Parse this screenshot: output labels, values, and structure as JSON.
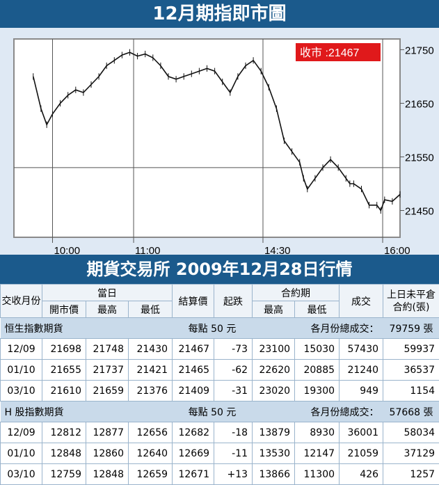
{
  "title": "12月期指即市圖",
  "chart_data": {
    "type": "line",
    "close_label": "收市 :21467",
    "reference_line": 21530,
    "ylim": [
      21400,
      21770
    ],
    "yticks": [
      21750,
      21650,
      21550,
      21450
    ],
    "xticks": [
      {
        "pos": 0.1,
        "label": "10:00"
      },
      {
        "pos": 0.31,
        "label": "11:00"
      },
      {
        "pos": 0.645,
        "label": "14:30"
      },
      {
        "pos": 0.955,
        "label": "16:00"
      }
    ],
    "series": [
      {
        "x": [
          0.05,
          0.07,
          0.085,
          0.1,
          0.12,
          0.14,
          0.16,
          0.18,
          0.2,
          0.22,
          0.24,
          0.26,
          0.28,
          0.3,
          0.32,
          0.34,
          0.36,
          0.38,
          0.4,
          0.42,
          0.44,
          0.46,
          0.48,
          0.5,
          0.52,
          0.54,
          0.56,
          0.58,
          0.6,
          0.62,
          0.64,
          0.66,
          0.68,
          0.7,
          0.72,
          0.74,
          0.75,
          0.76,
          0.78,
          0.8,
          0.82,
          0.84,
          0.86,
          0.87,
          0.88,
          0.9,
          0.92,
          0.94,
          0.95,
          0.96,
          0.98,
          1.0
        ],
        "values": [
          21700,
          21640,
          21610,
          21630,
          21650,
          21665,
          21675,
          21670,
          21685,
          21700,
          21720,
          21730,
          21740,
          21745,
          21738,
          21742,
          21735,
          21720,
          21700,
          21695,
          21700,
          21705,
          21710,
          21715,
          21710,
          21690,
          21670,
          21700,
          21720,
          21730,
          21710,
          21680,
          21640,
          21580,
          21560,
          21540,
          21510,
          21490,
          21510,
          21530,
          21545,
          21530,
          21510,
          21500,
          21500,
          21490,
          21460,
          21460,
          21450,
          21470,
          21467,
          21480
        ]
      }
    ]
  },
  "subtitle": "期貨交易所 2009年12月28日行情",
  "table": {
    "headers": {
      "month": "交收月份",
      "today": "當日",
      "open": "開市價",
      "high": "最高",
      "low": "最低",
      "settle": "結算價",
      "change": "起跌",
      "contract": "合約期",
      "c_high": "最高",
      "c_low": "最低",
      "volume": "成交",
      "oi": "上日未平倉合約(張)"
    },
    "sections": [
      {
        "name": "恒生指數期貨",
        "unit": "每點 50 元",
        "total_label": "各月份總成交：",
        "total_value": "79759 張",
        "rows": [
          [
            "12/09",
            "21698",
            "21748",
            "21430",
            "21467",
            "-73",
            "23100",
            "15030",
            "57430",
            "59937"
          ],
          [
            "01/10",
            "21655",
            "21737",
            "21421",
            "21465",
            "-62",
            "22620",
            "20885",
            "21240",
            "36537"
          ],
          [
            "03/10",
            "21610",
            "21659",
            "21376",
            "21409",
            "-31",
            "23020",
            "19300",
            "949",
            "1154"
          ]
        ]
      },
      {
        "name": "H 股指數期貨",
        "unit": "每點 50 元",
        "total_label": "各月份總成交：",
        "total_value": "57668 張",
        "rows": [
          [
            "12/09",
            "12812",
            "12877",
            "12656",
            "12682",
            "-18",
            "13879",
            "8930",
            "36001",
            "58034"
          ],
          [
            "01/10",
            "12848",
            "12860",
            "12640",
            "12669",
            "-11",
            "13530",
            "12147",
            "21059",
            "37129"
          ],
          [
            "03/10",
            "12759",
            "12848",
            "12659",
            "12671",
            "+13",
            "13866",
            "11300",
            "426",
            "1257"
          ]
        ]
      }
    ]
  },
  "colors": {
    "banner": "#1b5a8c",
    "close_badge": "#e0191b",
    "chart_bg": "#dfe9f4"
  }
}
